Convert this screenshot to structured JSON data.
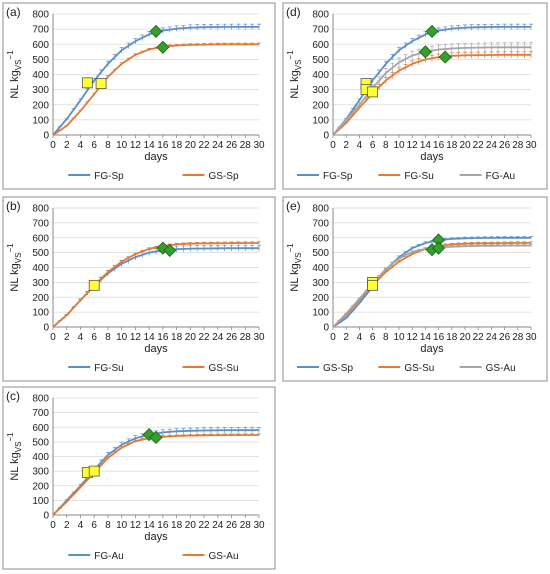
{
  "figure": {
    "panel_labels": [
      "(a)",
      "(b)",
      "(c)",
      "(d)",
      "(e)"
    ]
  },
  "axis": {
    "ylabel": "NL kg",
    "ylabel_sub": "VS",
    "ylabel_sup": "−1",
    "xlabel": "days",
    "xlim": [
      0,
      30
    ],
    "ylim": [
      0,
      800
    ],
    "xticks": [
      0,
      2,
      4,
      6,
      8,
      10,
      12,
      14,
      16,
      18,
      20,
      22,
      24,
      26,
      28,
      30
    ],
    "yticks": [
      0,
      100,
      200,
      300,
      400,
      500,
      600,
      700,
      800
    ],
    "grid": "horizontal"
  },
  "colors": {
    "blue": "#5b8fc7",
    "orange": "#e07b39",
    "gray": "#a5a5a5",
    "yellow_marker": "#ffff33",
    "green_marker": "#33a02c",
    "grid": "#d9d9d9",
    "frame": "#8c8c8c"
  },
  "chart_data": [
    {
      "panel": "(a)",
      "type": "line",
      "series": [
        {
          "name": "FG-Sp",
          "color": "blue",
          "x": [
            0,
            2,
            4,
            6,
            8,
            10,
            12,
            14,
            16,
            18,
            20,
            22,
            24,
            26,
            28,
            30
          ],
          "values": [
            0,
            105,
            230,
            360,
            470,
            560,
            620,
            665,
            690,
            703,
            710,
            713,
            714,
            715,
            715,
            715
          ],
          "error": 18
        },
        {
          "name": "GS-Sp",
          "color": "orange",
          "x": [
            0,
            2,
            4,
            6,
            8,
            10,
            12,
            14,
            16,
            18,
            20,
            22,
            24,
            26,
            28,
            30
          ],
          "values": [
            0,
            60,
            160,
            270,
            385,
            470,
            530,
            565,
            583,
            592,
            596,
            598,
            599,
            600,
            600,
            600
          ],
          "error": 8
        }
      ],
      "markers": [
        {
          "shape": "square",
          "color": "yellow_marker",
          "x": 5,
          "y": 345
        },
        {
          "shape": "square",
          "color": "yellow_marker",
          "x": 7,
          "y": 340
        },
        {
          "shape": "diamond",
          "color": "green_marker",
          "x": 15,
          "y": 685
        },
        {
          "shape": "diamond",
          "color": "green_marker",
          "x": 16,
          "y": 580
        }
      ]
    },
    {
      "panel": "(b)",
      "type": "line",
      "series": [
        {
          "name": "FG-Su",
          "color": "blue",
          "x": [
            0,
            2,
            4,
            6,
            8,
            10,
            12,
            14,
            16,
            18,
            20,
            22,
            24,
            26,
            28,
            30
          ],
          "values": [
            0,
            80,
            180,
            275,
            360,
            425,
            470,
            500,
            515,
            523,
            527,
            528,
            529,
            530,
            530,
            530
          ],
          "error": 20
        },
        {
          "name": "GS-Su",
          "color": "orange",
          "x": [
            0,
            2,
            4,
            6,
            8,
            10,
            12,
            14,
            16,
            18,
            20,
            22,
            24,
            26,
            28,
            30
          ],
          "values": [
            0,
            80,
            180,
            280,
            370,
            440,
            490,
            525,
            545,
            555,
            560,
            562,
            563,
            564,
            565,
            565
          ],
          "error": 8
        }
      ],
      "markers": [
        {
          "shape": "square",
          "color": "yellow_marker",
          "x": 6,
          "y": 280
        },
        {
          "shape": "diamond",
          "color": "green_marker",
          "x": 16,
          "y": 530
        },
        {
          "shape": "diamond",
          "color": "green_marker",
          "x": 17,
          "y": 515
        }
      ]
    },
    {
      "panel": "(c)",
      "type": "line",
      "series": [
        {
          "name": "FG-Au",
          "color": "blue",
          "x": [
            0,
            2,
            4,
            6,
            8,
            10,
            12,
            14,
            16,
            18,
            20,
            22,
            24,
            26,
            28,
            30
          ],
          "values": [
            0,
            100,
            200,
            310,
            410,
            480,
            525,
            550,
            565,
            572,
            576,
            578,
            579,
            580,
            580,
            580
          ],
          "error": 18
        },
        {
          "name": "GS-Au",
          "color": "orange",
          "x": [
            0,
            2,
            4,
            6,
            8,
            10,
            12,
            14,
            16,
            18,
            20,
            22,
            24,
            26,
            28,
            30
          ],
          "values": [
            0,
            90,
            190,
            290,
            390,
            460,
            505,
            525,
            535,
            540,
            543,
            545,
            546,
            547,
            547,
            547
          ],
          "error": 8
        }
      ],
      "markers": [
        {
          "shape": "square",
          "color": "yellow_marker",
          "x": 5,
          "y": 290
        },
        {
          "shape": "square",
          "color": "yellow_marker",
          "x": 6,
          "y": 300
        },
        {
          "shape": "diamond",
          "color": "green_marker",
          "x": 14,
          "y": 550
        },
        {
          "shape": "diamond",
          "color": "green_marker",
          "x": 15,
          "y": 530
        }
      ]
    },
    {
      "panel": "(d)",
      "type": "line",
      "series": [
        {
          "name": "FG-Sp",
          "color": "blue",
          "x": [
            0,
            2,
            4,
            6,
            8,
            10,
            12,
            14,
            16,
            18,
            20,
            22,
            24,
            26,
            28,
            30
          ],
          "values": [
            0,
            105,
            230,
            360,
            470,
            560,
            620,
            665,
            690,
            703,
            710,
            713,
            714,
            715,
            715,
            715
          ],
          "error": 18
        },
        {
          "name": "FG-Su",
          "color": "orange",
          "x": [
            0,
            2,
            4,
            6,
            8,
            10,
            12,
            14,
            16,
            18,
            20,
            22,
            24,
            26,
            28,
            30
          ],
          "values": [
            0,
            80,
            180,
            275,
            360,
            425,
            470,
            500,
            515,
            523,
            527,
            528,
            529,
            530,
            530,
            530
          ],
          "error": 20
        },
        {
          "name": "FG-Au",
          "color": "gray",
          "x": [
            0,
            2,
            4,
            6,
            8,
            10,
            12,
            14,
            16,
            18,
            20,
            22,
            24,
            26,
            28,
            30
          ],
          "values": [
            0,
            100,
            200,
            310,
            410,
            480,
            525,
            550,
            565,
            572,
            576,
            578,
            579,
            580,
            580,
            580
          ],
          "error": 30
        }
      ],
      "markers": [
        {
          "shape": "square",
          "color": "yellow_marker",
          "x": 5,
          "y": 340
        },
        {
          "shape": "square",
          "color": "yellow_marker",
          "x": 5,
          "y": 300
        },
        {
          "shape": "square",
          "color": "yellow_marker",
          "x": 6,
          "y": 285
        },
        {
          "shape": "diamond",
          "color": "green_marker",
          "x": 14,
          "y": 550
        },
        {
          "shape": "diamond",
          "color": "green_marker",
          "x": 15,
          "y": 685
        },
        {
          "shape": "diamond",
          "color": "green_marker",
          "x": 17,
          "y": 515
        }
      ]
    },
    {
      "panel": "(e)",
      "type": "line",
      "series": [
        {
          "name": "GS-Sp",
          "color": "blue",
          "x": [
            0,
            2,
            4,
            6,
            8,
            10,
            12,
            14,
            16,
            18,
            20,
            22,
            24,
            26,
            28,
            30
          ],
          "values": [
            0,
            60,
            160,
            270,
            385,
            470,
            530,
            565,
            583,
            592,
            596,
            598,
            599,
            600,
            600,
            600
          ],
          "error": 8
        },
        {
          "name": "GS-Su",
          "color": "orange",
          "x": [
            0,
            2,
            4,
            6,
            8,
            10,
            12,
            14,
            16,
            18,
            20,
            22,
            24,
            26,
            28,
            30
          ],
          "values": [
            0,
            80,
            180,
            280,
            370,
            440,
            490,
            525,
            545,
            555,
            560,
            562,
            563,
            564,
            565,
            565
          ],
          "error": 8
        },
        {
          "name": "GS-Au",
          "color": "gray",
          "x": [
            0,
            2,
            4,
            6,
            8,
            10,
            12,
            14,
            16,
            18,
            20,
            22,
            24,
            26,
            28,
            30
          ],
          "values": [
            0,
            90,
            190,
            290,
            390,
            460,
            505,
            525,
            535,
            540,
            543,
            545,
            546,
            547,
            547,
            547
          ],
          "error": 8
        }
      ],
      "markers": [
        {
          "shape": "square",
          "color": "yellow_marker",
          "x": 6,
          "y": 300
        },
        {
          "shape": "square",
          "color": "yellow_marker",
          "x": 6,
          "y": 280
        },
        {
          "shape": "diamond",
          "color": "green_marker",
          "x": 15,
          "y": 520
        },
        {
          "shape": "diamond",
          "color": "green_marker",
          "x": 16,
          "y": 585
        },
        {
          "shape": "diamond",
          "color": "green_marker",
          "x": 16,
          "y": 530
        }
      ]
    }
  ]
}
